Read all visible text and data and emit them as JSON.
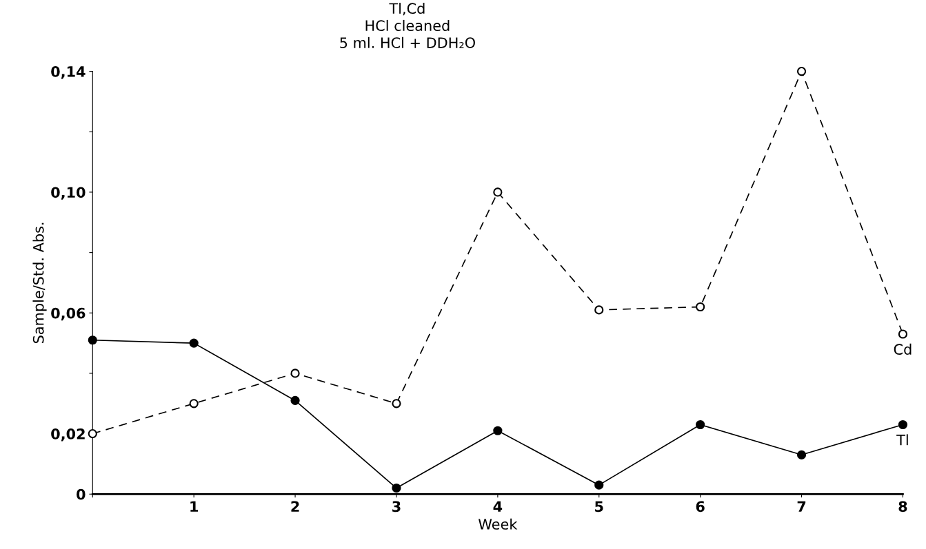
{
  "chart_data": {
    "type": "line",
    "title": "Tl,Cd\nHCl cleaned\n5 ml. HCl + DDH₂O",
    "xlabel": "Week",
    "ylabel": "Sample/Std. Abs.",
    "x": [
      0,
      1,
      2,
      3,
      4,
      5,
      6,
      7,
      8
    ],
    "series": [
      {
        "name": "Cd",
        "color": "#000000",
        "line_style": "dashed",
        "marker": "circle",
        "values": [
          0.02,
          0.03,
          0.04,
          0.03,
          0.1,
          0.061,
          0.062,
          0.14,
          0.053
        ]
      },
      {
        "name": "Tl",
        "color": "#000000",
        "line_style": "solid",
        "marker": "circle",
        "values": [
          0.051,
          0.05,
          0.031,
          0.002,
          0.021,
          0.003,
          0.023,
          0.013,
          0.023
        ]
      }
    ],
    "xlim": [
      0,
      8
    ],
    "xticks": [
      {
        "value": 0,
        "label": null
      },
      1,
      2,
      3,
      4,
      5,
      6,
      7,
      8
    ],
    "ylim": [
      0,
      0.14
    ],
    "yticks": [
      {
        "value": 0,
        "label": "0"
      },
      {
        "value": 0.02,
        "label": "0,02"
      },
      {
        "value": 0.04,
        "label": null
      },
      {
        "value": 0.06,
        "label": "0,06"
      },
      {
        "value": 0.08,
        "label": null
      },
      {
        "value": 0.1,
        "label": "0,10"
      },
      {
        "value": 0.12,
        "label": null
      },
      {
        "value": 0.14,
        "label": "0,14"
      }
    ],
    "grid": false,
    "legend": false
  }
}
